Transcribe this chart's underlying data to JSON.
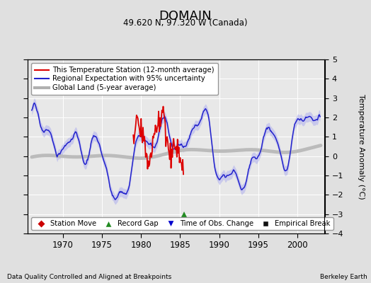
{
  "title": "DOMAIN",
  "subtitle": "49.620 N, 97.320 W (Canada)",
  "ylabel": "Temperature Anomaly (°C)",
  "footer_left": "Data Quality Controlled and Aligned at Breakpoints",
  "footer_right": "Berkeley Earth",
  "xlim": [
    1965.5,
    2003.5
  ],
  "ylim": [
    -4,
    5
  ],
  "yticks": [
    -4,
    -3,
    -2,
    -1,
    0,
    1,
    2,
    3,
    4,
    5
  ],
  "xticks": [
    1970,
    1975,
    1980,
    1985,
    1990,
    1995,
    2000
  ],
  "bg_color": "#e0e0e0",
  "plot_bg_color": "#e8e8e8",
  "grid_color": "#ffffff",
  "legend_items": [
    {
      "label": "This Temperature Station (12-month average)",
      "color": "#dd0000",
      "lw": 1.5
    },
    {
      "label": "Regional Expectation with 95% uncertainty",
      "color": "#2222cc",
      "lw": 1.5
    },
    {
      "label": "Global Land (5-year average)",
      "color": "#b0b0b0",
      "lw": 3
    }
  ],
  "marker_legend": [
    {
      "label": "Station Move",
      "color": "#cc0000",
      "marker": "D"
    },
    {
      "label": "Record Gap",
      "color": "#228B22",
      "marker": "^"
    },
    {
      "label": "Time of Obs. Change",
      "color": "#0000cc",
      "marker": "v"
    },
    {
      "label": "Empirical Break",
      "color": "#000000",
      "marker": "s"
    }
  ],
  "record_gap_x": 1985.5,
  "record_gap_y": -3.05,
  "station_start_year": 1979,
  "station_end_year": 1985.5
}
